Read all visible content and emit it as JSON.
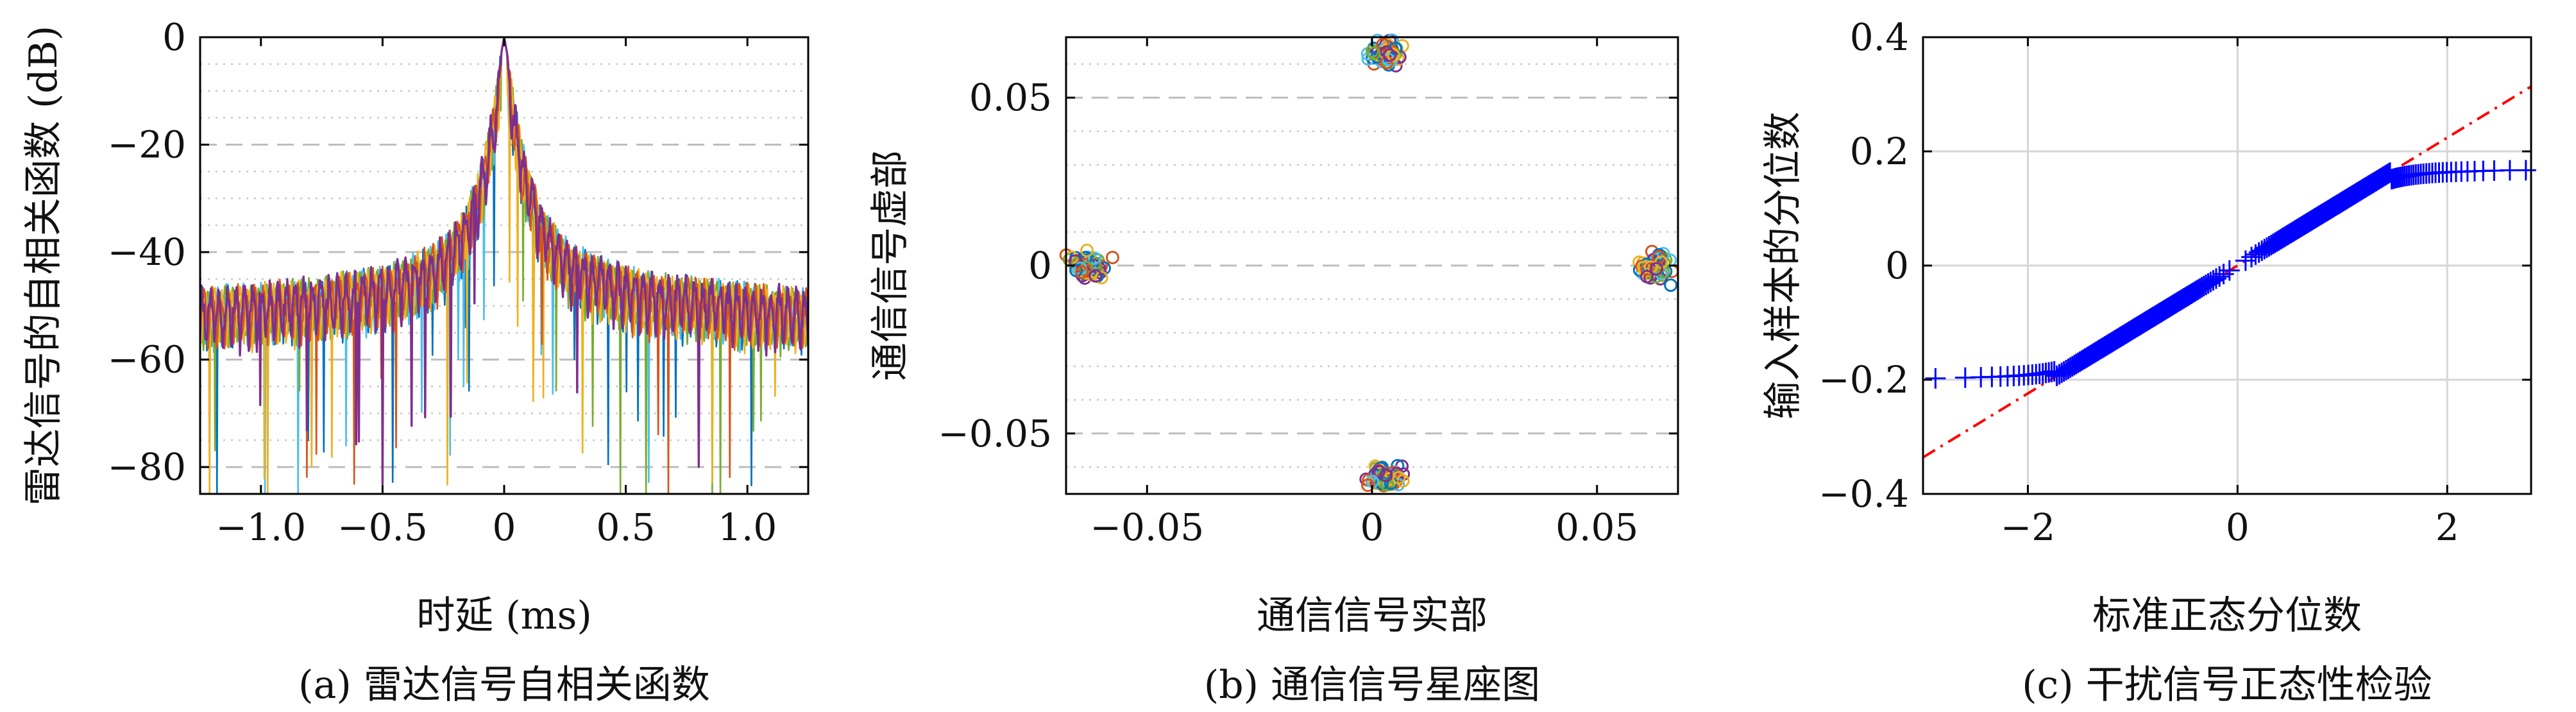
{
  "chart_data": [
    {
      "type": "line",
      "caption": "(a) 雷达信号自相关函数",
      "xlabel": "时延 (ms)",
      "ylabel": "雷达信号的自相关函数 (dB)",
      "xlim": [
        -1.25,
        1.25
      ],
      "ylim": [
        -85,
        0
      ],
      "xticks": [
        -1.0,
        -0.5,
        0,
        0.5,
        1.0
      ],
      "xtick_labels": [
        "−1.0",
        "−0.5",
        "0",
        "0.5",
        "1.0"
      ],
      "yticks": [
        0,
        -20,
        -40,
        -60,
        -80
      ],
      "ytick_labels": [
        "0",
        "−20",
        "−40",
        "−60",
        "−80"
      ],
      "grid": "dashed-major dotted-minor horizontal",
      "peak": {
        "x": 0,
        "y": 0
      },
      "sidelobe_floor_db": -50,
      "series_colors": [
        "#0072BD",
        "#4DBEEE",
        "#77AC30",
        "#EDB120",
        "#D95319",
        "#7E2F8E"
      ]
    },
    {
      "type": "scatter",
      "caption": "(b) 通信信号星座图",
      "xlabel": "通信信号实部",
      "ylabel": "通信信号虚部",
      "xlim": [
        -0.068,
        0.068
      ],
      "ylim": [
        -0.068,
        0.068
      ],
      "xticks": [
        -0.05,
        0,
        0.05
      ],
      "xtick_labels": [
        "−0.05",
        "0",
        "0.05"
      ],
      "yticks": [
        0.05,
        0,
        -0.05
      ],
      "ytick_labels": [
        "0.05",
        "0",
        "−0.05"
      ],
      "grid": "dashed-major dotted-minor horizontal",
      "clusters": [
        {
          "x": 0.003,
          "y": 0.063
        },
        {
          "x": -0.063,
          "y": 0.0
        },
        {
          "x": 0.063,
          "y": 0.0
        },
        {
          "x": 0.003,
          "y": -0.063
        }
      ],
      "marker": "circle",
      "series_colors": [
        "#0072BD",
        "#D95319",
        "#EDB120",
        "#7E2F8E",
        "#77AC30",
        "#4DBEEE"
      ]
    },
    {
      "type": "scatter",
      "caption": "(c) 干扰信号正态性检验",
      "xlabel": "标准正态分位数",
      "ylabel": "输入样本的分位数",
      "xlim": [
        -3.0,
        2.8
      ],
      "ylim": [
        -0.4,
        0.4
      ],
      "xticks": [
        -2,
        0,
        2
      ],
      "xtick_labels": [
        "−2",
        "0",
        "2"
      ],
      "yticks": [
        0.4,
        0.2,
        0,
        -0.2,
        -0.4
      ],
      "ytick_labels": [
        "0.4",
        "0.2",
        "0",
        "−0.2",
        "−0.4"
      ],
      "grid": "solid major",
      "marker": "+",
      "marker_color": "#0000FF",
      "reference_line": {
        "style": "dash-dot",
        "color": "#FF0000",
        "slope": 0.112,
        "intercept": 0.0
      },
      "tail_limits": [
        -0.195,
        0.163
      ]
    }
  ]
}
